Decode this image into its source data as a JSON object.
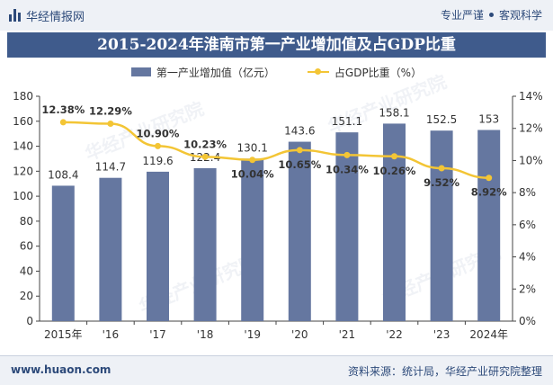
{
  "header": {
    "brand": "华经情报网",
    "tagline_left": "专业严谨",
    "tagline_right": "客观科学"
  },
  "title": "2015-2024年淮南市第一产业增加值及占GDP比重",
  "legend": {
    "bar_label": "第一产业增加值（亿元）",
    "line_label": "占GDP比重（%）"
  },
  "watermark": "华经产业研究院",
  "footer": {
    "site": "www.huaon.com",
    "source": "资料来源：统计局，华经产业研究院整理"
  },
  "colors": {
    "bar": "#6577a0",
    "line": "#f3c535",
    "title_bg": "#3f5b8c",
    "brand": "#2d4a7a"
  },
  "chart_data": {
    "type": "bar",
    "categories": [
      "2015年",
      "'16",
      "'17",
      "'18",
      "'19",
      "'20",
      "'21",
      "'22",
      "'23",
      "2024年"
    ],
    "series": [
      {
        "name": "第一产业增加值（亿元）",
        "type": "bar",
        "axis": "left",
        "values": [
          108.4,
          114.7,
          119.6,
          122.4,
          130.1,
          143.6,
          151.1,
          158.1,
          152.5,
          153
        ],
        "labels": [
          "108.4",
          "114.7",
          "119.6",
          "122.4",
          "130.1",
          "143.6",
          "151.1",
          "158.1",
          "152.5",
          "153"
        ]
      },
      {
        "name": "占GDP比重（%）",
        "type": "line",
        "axis": "right",
        "values": [
          12.38,
          12.29,
          10.9,
          10.23,
          10.04,
          10.65,
          10.34,
          10.26,
          9.52,
          8.92
        ],
        "labels": [
          "12.38%",
          "12.29%",
          "10.90%",
          "10.23%",
          "10.04%",
          "10.65%",
          "10.34%",
          "10.26%",
          "9.52%",
          "8.92%"
        ]
      }
    ],
    "y_left": {
      "min": 0,
      "max": 180,
      "ticks": [
        "0",
        "20",
        "40",
        "60",
        "80",
        "100",
        "120",
        "140",
        "160",
        "180"
      ]
    },
    "y_right": {
      "min": 0,
      "max": 14,
      "ticks": [
        "0%",
        "2%",
        "4%",
        "6%",
        "8%",
        "10%",
        "12%",
        "14%"
      ]
    },
    "grid": false,
    "legend_position": "top"
  }
}
